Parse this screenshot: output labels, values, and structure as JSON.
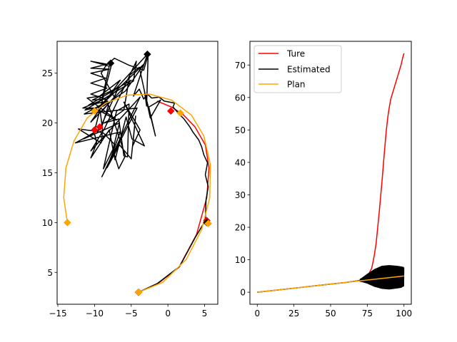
{
  "chart_data": [
    {
      "type": "line",
      "title": "",
      "xlabel": "",
      "ylabel": "",
      "xlim": [
        -15.1,
        6.8
      ],
      "ylim": [
        1.8,
        28.2
      ],
      "xticks": [
        -15,
        -10,
        -5,
        0,
        5
      ],
      "yticks": [
        5,
        10,
        15,
        20,
        25
      ],
      "series": [
        {
          "color": "#ff0000",
          "role": "true-path",
          "points": [
            [
              -4,
              3
            ],
            [
              -1.5,
              3.8
            ],
            [
              1.5,
              5.5
            ],
            [
              3.9,
              8.8
            ],
            [
              5.3,
              12.5
            ],
            [
              5.6,
              15.5
            ],
            [
              5.1,
              17.8
            ],
            [
              3.7,
              19.6
            ],
            [
              2,
              20.9
            ],
            [
              0.5,
              21.6
            ],
            [
              -1.5,
              22.2
            ]
          ]
        },
        {
          "color": "#000000",
          "role": "estimated-path",
          "points": [
            [
              -4,
              3
            ],
            [
              -1.4,
              3.9
            ],
            [
              1.6,
              5.6
            ],
            [
              3.8,
              8.6
            ],
            [
              5.1,
              10.2
            ],
            [
              5.2,
              12.3
            ],
            [
              5.5,
              13.6
            ],
            [
              5.1,
              14.8
            ],
            [
              5.4,
              16
            ],
            [
              4.9,
              16.8
            ],
            [
              4.6,
              17.6
            ],
            [
              4.2,
              18.3
            ],
            [
              3.4,
              19.1
            ],
            [
              3,
              19.6
            ],
            [
              2.2,
              20.4
            ],
            [
              1.4,
              21
            ],
            [
              0.7,
              21.6
            ],
            [
              0.9,
              22
            ],
            [
              -0.5,
              22.2
            ],
            [
              -1.2,
              22.6
            ],
            [
              -2.2,
              22.5
            ],
            [
              -2.8,
              22.9
            ],
            [
              -3.3,
              22.4
            ],
            [
              -3.9,
              23.4
            ],
            [
              -4.7,
              22.7
            ],
            [
              -2.8,
              26.9
            ],
            [
              -9.5,
              21.5
            ],
            [
              -3.3,
              25.9
            ],
            [
              -5.8,
              23.2
            ],
            [
              -8.8,
              21.7
            ],
            [
              -11.3,
              21.3
            ],
            [
              -4.7,
              24.2
            ],
            [
              -4.3,
              26.2
            ],
            [
              -8.6,
              19.5
            ],
            [
              -10.5,
              17.2
            ],
            [
              -3.8,
              22.6
            ],
            [
              -9,
              14.6
            ],
            [
              -4.2,
              21.5
            ],
            [
              -11.4,
              20.9
            ],
            [
              -8.2,
              22.2
            ],
            [
              -10.8,
              21.8
            ],
            [
              -5,
              24.3
            ],
            [
              -10.5,
              20.1
            ],
            [
              -6.5,
              24.3
            ],
            [
              -9.3,
              22.7
            ],
            [
              -11,
              22.5
            ],
            [
              -7,
              20.3
            ],
            [
              -10,
              21.5
            ],
            [
              -11.6,
              21.5
            ],
            [
              -9,
              22.3
            ],
            [
              -8,
              25.7
            ],
            [
              -10.5,
              26.2
            ],
            [
              -8.3,
              25.9
            ],
            [
              -10.5,
              25.5
            ],
            [
              -8,
              25.4
            ],
            [
              -10.5,
              25
            ],
            [
              -8.5,
              24.5
            ],
            [
              -10.5,
              24
            ],
            [
              -8.3,
              23.5
            ],
            [
              -10.5,
              22.9
            ],
            [
              -8.5,
              22.4
            ],
            [
              -10.3,
              22.3
            ],
            [
              -6.7,
              23.6
            ],
            [
              -9.3,
              19.4
            ],
            [
              -11.5,
              18.4
            ],
            [
              -6.6,
              20
            ],
            [
              -7.5,
              17.3
            ],
            [
              -6.7,
              15.4
            ],
            [
              -5.8,
              16.7
            ],
            [
              -8.1,
              21.8
            ],
            [
              -9.1,
              19.4
            ],
            [
              -12.6,
              18
            ],
            [
              -6.5,
              19.1
            ],
            [
              -8.3,
              15.5
            ],
            [
              -6.6,
              17.8
            ],
            [
              -5,
              16.4
            ],
            [
              -4.4,
              20.7
            ],
            [
              -4.8,
              17.7
            ],
            [
              -3.8,
              19.3
            ],
            [
              -6,
              22.1
            ],
            [
              -3.2,
              17.7
            ],
            [
              -4.9,
              18.4
            ],
            [
              -5.7,
              20.6
            ],
            [
              -7.2,
              16.3
            ],
            [
              -8,
              19.3
            ],
            [
              -10.5,
              16.5
            ],
            [
              -9.7,
              18
            ],
            [
              -10.1,
              19.2
            ],
            [
              -12.2,
              19.4
            ],
            [
              -9.1,
              18
            ],
            [
              -8.9,
              19.3
            ],
            [
              -9.2,
              21
            ],
            [
              -7.3,
              22.6
            ],
            [
              -9.1,
              25
            ],
            [
              -8.5,
              25.7
            ],
            [
              -7.3,
              26.5
            ],
            [
              -5.3,
              25.8
            ],
            [
              -3.3,
              25.3
            ],
            [
              -2.7,
              26.8
            ],
            [
              -2.9,
              21.7
            ],
            [
              -3.2,
              23.2
            ],
            [
              -1.7,
              18.7
            ],
            [
              -2.6,
              21.6
            ],
            [
              -1,
              22.3
            ],
            [
              -2.4,
              20.5
            ],
            [
              -3.9,
              25.6
            ],
            [
              -5.2,
              24.8
            ],
            [
              -6,
              21.3
            ],
            [
              -7.7,
              20.4
            ],
            [
              -8.7,
              20
            ],
            [
              -6.7,
              20.4
            ],
            [
              -6,
              16.7
            ],
            [
              -5.5,
              16.6
            ],
            [
              -5.3,
              21.9
            ],
            [
              -7,
              21.2
            ],
            [
              -8.8,
              15.4
            ],
            [
              -7.2,
              17.8
            ],
            [
              -8.8,
              19
            ],
            [
              -10,
              19.2
            ],
            [
              -7.6,
              26.1
            ],
            [
              -7.8,
              25.9
            ]
          ]
        },
        {
          "color": "#ffa500",
          "role": "planned-path",
          "points": [
            [
              -4,
              3
            ],
            [
              -0.7,
              4
            ],
            [
              2.5,
              6.3
            ],
            [
              4.6,
              9.3
            ],
            [
              5.7,
              12.5
            ],
            [
              5.8,
              15.8
            ],
            [
              4.9,
              18.7
            ],
            [
              3.2,
              20.8
            ],
            [
              0.5,
              22.3
            ],
            [
              -2.5,
              22.9
            ],
            [
              -5.5,
              22.8
            ],
            [
              -8.5,
              22
            ],
            [
              -11,
              20.5
            ],
            [
              -12.8,
              18.2
            ],
            [
              -13.9,
              15.5
            ],
            [
              -14.2,
              12.5
            ],
            [
              -13.7,
              10
            ]
          ]
        }
      ],
      "markers": [
        {
          "color": "#ff0000",
          "points": [
            [
              -4,
              3
            ],
            [
              5.3,
              10.2
            ],
            [
              0.4,
              21.2
            ],
            [
              -9.3,
              19.6
            ],
            [
              -10,
              19.3
            ]
          ]
        },
        {
          "color": "#000000",
          "points": [
            [
              -4,
              3
            ],
            [
              5.3,
              10
            ],
            [
              -2.8,
              26.9
            ],
            [
              -7.8,
              26
            ]
          ]
        },
        {
          "color": "#ffa500",
          "points": [
            [
              -4,
              3
            ],
            [
              5.5,
              9.9
            ],
            [
              1.7,
              21
            ],
            [
              -10,
              21.2
            ],
            [
              -13.7,
              10
            ]
          ]
        }
      ]
    },
    {
      "type": "line",
      "title": "",
      "xlabel": "",
      "ylabel": "",
      "xlim": [
        -5,
        105
      ],
      "ylim": [
        -3.7,
        77.3
      ],
      "xticks": [
        0,
        25,
        50,
        75,
        100
      ],
      "yticks": [
        0,
        10,
        20,
        30,
        40,
        50,
        60,
        70
      ],
      "legend_position": "top-left",
      "series": [
        {
          "name": "Ture",
          "color": "#ff0000",
          "points": [
            [
              0,
              0
            ],
            [
              10,
              0.5
            ],
            [
              20,
              1
            ],
            [
              30,
              1.5
            ],
            [
              40,
              2
            ],
            [
              50,
              2.5
            ],
            [
              60,
              3
            ],
            [
              65,
              3.3
            ],
            [
              70,
              3.6
            ],
            [
              74,
              4.3
            ],
            [
              76,
              5.6
            ],
            [
              78,
              7.4
            ],
            [
              79,
              9.5
            ],
            [
              80,
              12
            ],
            [
              81,
              15
            ],
            [
              82,
              19.5
            ],
            [
              83,
              24
            ],
            [
              84,
              29
            ],
            [
              85,
              34
            ],
            [
              86,
              39.5
            ],
            [
              87,
              45
            ],
            [
              88,
              50
            ],
            [
              89,
              54
            ],
            [
              90,
              57
            ],
            [
              91,
              59.5
            ],
            [
              92,
              61
            ],
            [
              93,
              62.5
            ],
            [
              94,
              64
            ],
            [
              95,
              65.5
            ],
            [
              96,
              67
            ],
            [
              97,
              68.5
            ],
            [
              98,
              70
            ],
            [
              99,
              72
            ],
            [
              100,
              73.6
            ]
          ]
        },
        {
          "name": "Estimated",
          "color": "#000000",
          "points": [
            [
              0,
              0
            ],
            [
              10,
              0.5
            ],
            [
              20,
              1
            ],
            [
              30,
              1.5
            ],
            [
              40,
              2
            ],
            [
              50,
              2.5
            ],
            [
              60,
              3
            ],
            [
              65,
              3.3
            ],
            [
              70,
              3.6
            ],
            [
              75,
              3.9
            ]
          ],
          "noise_start": 70,
          "noise_end": 100,
          "band": [
            [
              70,
              3.4,
              3.9
            ],
            [
              72,
              3.2,
              4.5
            ],
            [
              75,
              2.8,
              5.5
            ],
            [
              80,
              1.8,
              7
            ],
            [
              85,
              1.2,
              8
            ],
            [
              90,
              1,
              8.2
            ],
            [
              95,
              1.3,
              8
            ],
            [
              98,
              1.5,
              7.8
            ],
            [
              100,
              2,
              7.6
            ]
          ]
        },
        {
          "name": "Plan",
          "color": "#ffa500",
          "points": [
            [
              0,
              0
            ],
            [
              100,
              5
            ]
          ]
        }
      ]
    }
  ]
}
